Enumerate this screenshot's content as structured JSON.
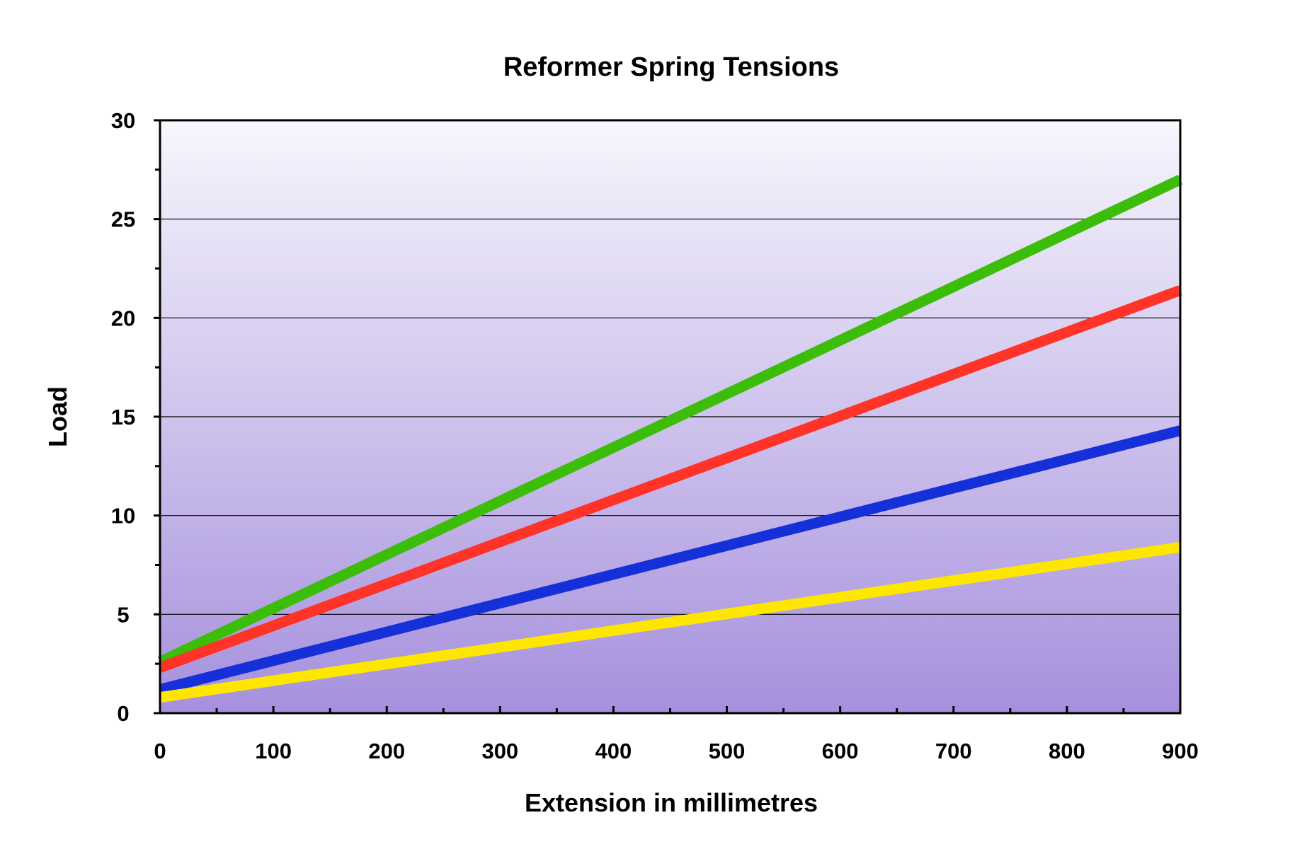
{
  "chart_data": {
    "type": "line",
    "title": "Reformer Spring Tensions",
    "xlabel": "Extension in millimetres",
    "ylabel": "Load",
    "xlim": [
      0,
      900
    ],
    "ylim": [
      0,
      30
    ],
    "x_ticks": [
      0,
      100,
      200,
      300,
      400,
      500,
      600,
      700,
      800,
      900
    ],
    "y_ticks": [
      0,
      5,
      10,
      15,
      20,
      25,
      30
    ],
    "grid": true,
    "legend": "none",
    "background": {
      "top": "#f7f6fc",
      "bottom": "#a690dd"
    },
    "series": [
      {
        "color": "#3cbd0a",
        "x": [
          0,
          900
        ],
        "y": [
          2.6,
          27.0
        ]
      },
      {
        "color": "#ff3328",
        "x": [
          0,
          900
        ],
        "y": [
          2.3,
          21.4
        ]
      },
      {
        "color": "#1530d8",
        "x": [
          0,
          900
        ],
        "y": [
          1.2,
          14.3
        ]
      },
      {
        "color": "#ffe600",
        "x": [
          0,
          900
        ],
        "y": [
          0.8,
          8.4
        ]
      }
    ]
  }
}
